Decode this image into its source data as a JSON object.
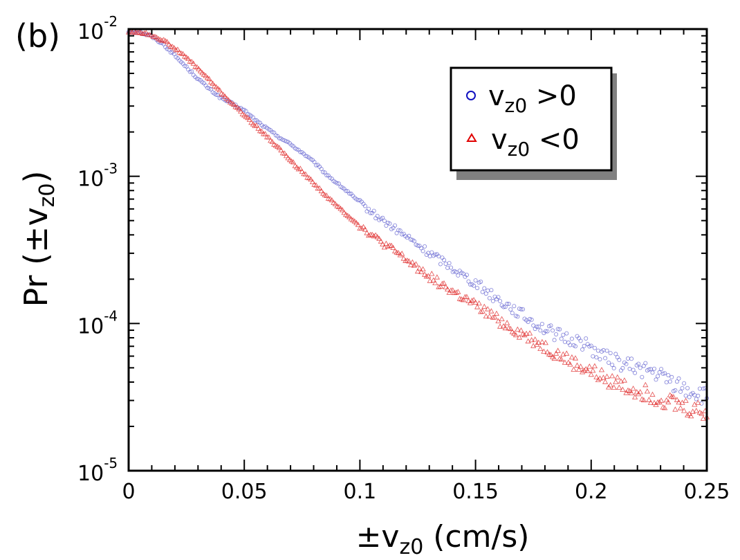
{
  "panel_label": "(b)",
  "chart_data": {
    "type": "scatter",
    "xlabel": {
      "prefix": "±v",
      "sub": "z0",
      "suffix": " (cm/s)"
    },
    "ylabel": {
      "prefix": "Pr (±v",
      "sub": "z0",
      "suffix": ")"
    },
    "xlim": [
      0,
      0.25
    ],
    "ylim": [
      1e-05,
      0.01
    ],
    "yscale": "log",
    "x_ticks": [
      0,
      0.05,
      0.1,
      0.15,
      0.2,
      0.25
    ],
    "x_tick_labels": [
      "0",
      "0.05",
      "0.1",
      "0.15",
      "0.2",
      "0.25"
    ],
    "y_ticks": [
      {
        "value": 1e-05,
        "base": "10",
        "exp": "-5"
      },
      {
        "value": 0.0001,
        "base": "10",
        "exp": "-4"
      },
      {
        "value": 0.001,
        "base": "10",
        "exp": "-3"
      },
      {
        "value": 0.01,
        "base": "10",
        "exp": "-2"
      }
    ],
    "grid": false,
    "legend_position": "top-right",
    "series": [
      {
        "name": {
          "prefix": "v",
          "sub": "z0",
          "suffix": " >0"
        },
        "marker": "circle",
        "color": "#5555cc",
        "legend_color": "#1010c0",
        "x": [
          0.0,
          0.005,
          0.01,
          0.015,
          0.02,
          0.025,
          0.03,
          0.035,
          0.04,
          0.045,
          0.05,
          0.055,
          0.06,
          0.065,
          0.07,
          0.075,
          0.08,
          0.085,
          0.09,
          0.095,
          0.1,
          0.105,
          0.11,
          0.115,
          0.12,
          0.125,
          0.13,
          0.135,
          0.14,
          0.145,
          0.15,
          0.155,
          0.16,
          0.165,
          0.17,
          0.175,
          0.18,
          0.185,
          0.19,
          0.195,
          0.2,
          0.205,
          0.21,
          0.215,
          0.22,
          0.225,
          0.23,
          0.235,
          0.24,
          0.245,
          0.25
        ],
        "y": [
          0.0096,
          0.0095,
          0.0089,
          0.0079,
          0.0066,
          0.0055,
          0.0046,
          0.0039,
          0.0034,
          0.0031,
          0.0028,
          0.0024,
          0.0021,
          0.00185,
          0.00165,
          0.00145,
          0.00125,
          0.00105,
          0.0009,
          0.00078,
          0.00066,
          0.00057,
          0.0005,
          0.00044,
          0.00039,
          0.00034,
          0.0003,
          0.00027,
          0.00024,
          0.00021,
          0.00019,
          0.000165,
          0.000145,
          0.00013,
          0.000115,
          0.000102,
          9.2e-05,
          8.4e-05,
          7.8e-05,
          7.6e-05,
          6.8e-05,
          6e-05,
          5.6e-05,
          5.2e-05,
          5e-05,
          4.8e-05,
          4.4e-05,
          4e-05,
          3.6e-05,
          3.4e-05,
          3.1e-05
        ]
      },
      {
        "name": {
          "prefix": "v",
          "sub": "z0",
          "suffix": " <0"
        },
        "marker": "triangle",
        "color": "#e03030",
        "legend_color": "#e00000",
        "x": [
          0.0,
          0.005,
          0.01,
          0.015,
          0.02,
          0.025,
          0.03,
          0.035,
          0.04,
          0.045,
          0.05,
          0.055,
          0.06,
          0.065,
          0.07,
          0.075,
          0.08,
          0.085,
          0.09,
          0.095,
          0.1,
          0.105,
          0.11,
          0.115,
          0.12,
          0.125,
          0.13,
          0.135,
          0.14,
          0.145,
          0.15,
          0.155,
          0.16,
          0.165,
          0.17,
          0.175,
          0.18,
          0.185,
          0.19,
          0.195,
          0.2,
          0.205,
          0.21,
          0.215,
          0.22,
          0.225,
          0.23,
          0.235,
          0.24,
          0.245,
          0.25
        ],
        "y": [
          0.0096,
          0.0095,
          0.0091,
          0.0084,
          0.0074,
          0.0064,
          0.0054,
          0.0045,
          0.0037,
          0.0031,
          0.0026,
          0.0022,
          0.00185,
          0.00155,
          0.00128,
          0.00108,
          0.0009,
          0.00075,
          0.00063,
          0.00054,
          0.00046,
          0.0004,
          0.00035,
          0.00031,
          0.00027,
          0.00024,
          0.00021,
          0.000185,
          0.000165,
          0.000148,
          0.000132,
          0.000118,
          0.000105,
          9.4e-05,
          8.5e-05,
          7.7e-05,
          6.9e-05,
          6.2e-05,
          5.6e-05,
          5.1e-05,
          4.7e-05,
          4.3e-05,
          4e-05,
          3.7e-05,
          3.5e-05,
          3.3e-05,
          3.1e-05,
          2.9e-05,
          2.7e-05,
          2.6e-05,
          2.5e-05
        ]
      }
    ]
  }
}
